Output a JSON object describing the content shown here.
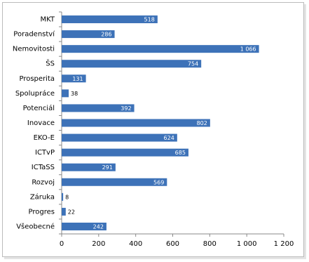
{
  "chart_data": {
    "type": "bar",
    "orientation": "horizontal",
    "categories": [
      "MKT",
      "Poradenství",
      "Nemovitosti",
      "ŠS",
      "Prosperita",
      "Spolupráce",
      "Potenciál",
      "Inovace",
      "EKO-E",
      "ICTvP",
      "ICTaSS",
      "Rozvoj",
      "Záruka",
      "Progres",
      "Všeobecné"
    ],
    "values": [
      518,
      286,
      1066,
      754,
      131,
      38,
      392,
      802,
      624,
      685,
      291,
      569,
      8,
      22,
      242
    ],
    "value_labels": [
      "518",
      "286",
      "1 066",
      "754",
      "131",
      "38",
      "392",
      "802",
      "624",
      "685",
      "291",
      "569",
      "8",
      "22",
      "242"
    ],
    "color": "#3d72b8",
    "xlim": [
      0,
      1200
    ],
    "xticks": [
      0,
      200,
      400,
      600,
      800,
      {
        "value": 1000,
        "label": "1 000"
      },
      {
        "value": 1200,
        "label": "1 200"
      }
    ],
    "grid": false
  }
}
